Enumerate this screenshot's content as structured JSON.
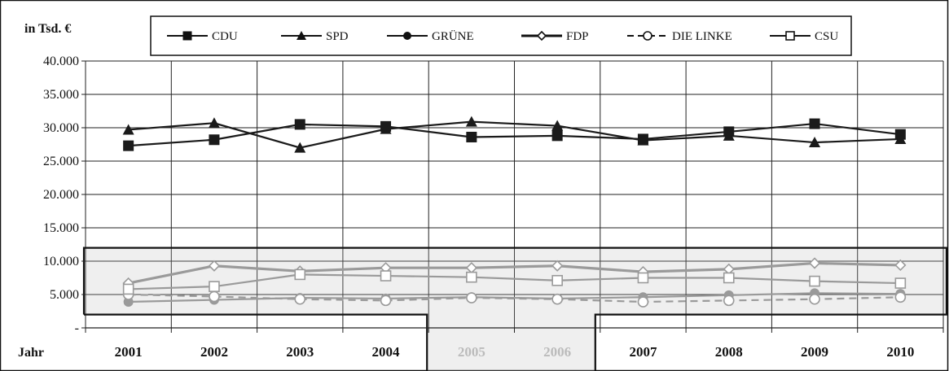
{
  "chart_data": {
    "type": "line",
    "unit_label": "in Tsd. €",
    "xlabel": "Jahr",
    "categories": [
      "2001",
      "2002",
      "2003",
      "2004",
      "2005",
      "2006",
      "2007",
      "2008",
      "2009",
      "2010"
    ],
    "dimmed_categories": [
      "2005",
      "2006"
    ],
    "yticks": [
      "-",
      "5.000",
      "10.000",
      "15.000",
      "20.000",
      "25.000",
      "30.000",
      "35.000",
      "40.000"
    ],
    "ylim": [
      0,
      40000
    ],
    "grid": true,
    "legend_position": "top",
    "highlight_range": [
      2000,
      12000
    ],
    "series": [
      {
        "name": "CDU",
        "marker": "filled-square",
        "dash": false,
        "line_color": "#1a1a1a",
        "marker_color": "#1a1a1a",
        "values": [
          27300,
          28200,
          30500,
          30200,
          28600,
          28800,
          28300,
          29400,
          30600,
          29000
        ]
      },
      {
        "name": "SPD",
        "marker": "filled-triangle",
        "dash": false,
        "line_color": "#1a1a1a",
        "marker_color": "#1a1a1a",
        "values": [
          29700,
          30700,
          27000,
          29800,
          30900,
          30300,
          28100,
          28800,
          27800,
          28300
        ]
      },
      {
        "name": "GRÜNE",
        "marker": "filled-circle",
        "dash": false,
        "line_color": "#9a9a9a",
        "marker_color": "#9a9a9a",
        "values": [
          3900,
          4200,
          4500,
          4400,
          4600,
          4400,
          4600,
          4900,
          5200,
          5100
        ]
      },
      {
        "name": "FDP",
        "marker": "open-diamond",
        "dash": false,
        "line_color": "#9a9a9a",
        "marker_color": "#9a9a9a",
        "values": [
          6700,
          9300,
          8500,
          9000,
          9000,
          9300,
          8400,
          8800,
          9700,
          9400
        ]
      },
      {
        "name": "DIE LINKE",
        "marker": "open-circle",
        "dash": true,
        "line_color": "#9a9a9a",
        "marker_color": "#9a9a9a",
        "values": [
          5000,
          4700,
          4300,
          4100,
          4500,
          4300,
          3900,
          4100,
          4300,
          4600
        ]
      },
      {
        "name": "CSU",
        "marker": "open-square",
        "dash": false,
        "line_color": "#9a9a9a",
        "marker_color": "#9a9a9a",
        "values": [
          5800,
          6200,
          8000,
          7800,
          7600,
          7100,
          7500,
          7500,
          7000,
          6700
        ]
      }
    ]
  }
}
